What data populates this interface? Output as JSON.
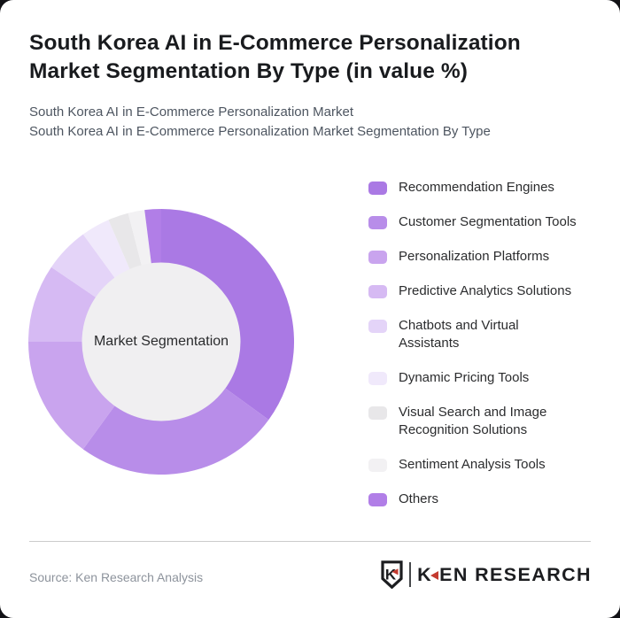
{
  "header": {
    "title": "South Korea AI in E-Commerce Personalization Market Segmentation By Type (in value %)",
    "subtitle_line1": "South Korea AI in E-Commerce Personalization Market",
    "subtitle_line2": "South Korea AI in E-Commerce Personalization Market Segmentation By Type"
  },
  "chart_data": {
    "type": "pie",
    "subtype": "donut",
    "title": "South Korea AI in E-Commerce Personalization Market Segmentation By Type (in value %)",
    "unit": "value %",
    "center_label": "Market Segmentation",
    "center_fill": "#f0eff1",
    "start_angle_deg": 0,
    "direction": "clockwise",
    "legend_position": "right",
    "segments": [
      {
        "label": "Recommendation Engines",
        "label_lines": [
          "Recommendation Engines"
        ],
        "value_pct": 35,
        "color": "#aa79e4"
      },
      {
        "label": "Customer Segmentation Tools",
        "label_lines": [
          "Customer Segmentation Tools"
        ],
        "value_pct": 25,
        "color": "#b88de9"
      },
      {
        "label": "Personalization Platforms",
        "label_lines": [
          "Personalization Platforms"
        ],
        "value_pct": 15,
        "color": "#c9a4ee"
      },
      {
        "label": "Predictive Analytics Solutions",
        "label_lines": [
          "Predictive Analytics Solutions"
        ],
        "value_pct": 9.5,
        "color": "#d6baf3"
      },
      {
        "label": "Chatbots and Virtual Assistants",
        "label_lines": [
          "Chatbots and Virtual",
          "Assistants"
        ],
        "value_pct": 5.5,
        "color": "#e4d4f8"
      },
      {
        "label": "Dynamic Pricing Tools",
        "label_lines": [
          "Dynamic Pricing Tools"
        ],
        "value_pct": 3.5,
        "color": "#f0e9fb"
      },
      {
        "label": "Visual Search and Image Recognition Solutions",
        "label_lines": [
          "Visual Search and Image",
          "Recognition Solutions"
        ],
        "value_pct": 2.5,
        "color": "#e8e7e9"
      },
      {
        "label": "Sentiment Analysis Tools",
        "label_lines": [
          "Sentiment Analysis Tools"
        ],
        "value_pct": 2,
        "color": "#f2f1f3"
      },
      {
        "label": "Others",
        "label_lines": [
          "Others"
        ],
        "value_pct": 2,
        "color": "#b17ee7"
      }
    ]
  },
  "footer": {
    "source": "Source: Ken Research Analysis",
    "brand": {
      "shield_letter": "K",
      "name_k": "K",
      "name_rest": "EN RESEARCH",
      "accent": "#c43a2f",
      "text_color": "#1c1d20"
    }
  }
}
